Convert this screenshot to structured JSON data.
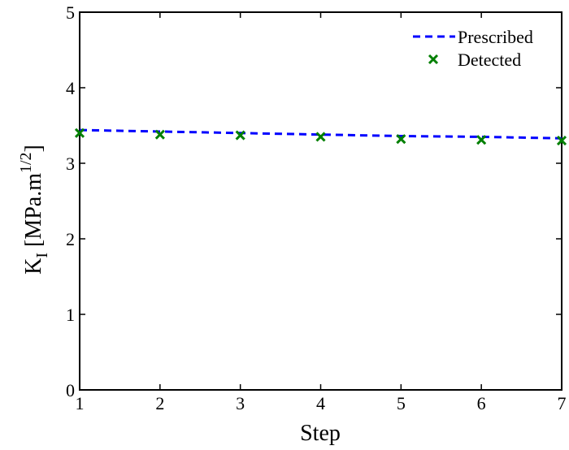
{
  "chart_data": {
    "type": "line",
    "xlabel": "Step",
    "ylabel": {
      "base": "K",
      "subscript": "I",
      "units_open": " [MPa.m",
      "units_exponent": "1/2",
      "units_close": "]"
    },
    "xlim": [
      1,
      7
    ],
    "ylim": [
      0,
      5
    ],
    "x_ticks": [
      "1",
      "2",
      "3",
      "4",
      "5",
      "6",
      "7"
    ],
    "y_ticks": [
      "0",
      "1",
      "2",
      "3",
      "4",
      "5"
    ],
    "grid": false,
    "legend_position": "top-right",
    "series": [
      {
        "name": "Prescribed",
        "style": "dashed-line",
        "color": "#0000ff",
        "x": [
          1,
          2,
          3,
          4,
          5,
          6,
          7
        ],
        "values": [
          3.44,
          3.42,
          3.4,
          3.38,
          3.36,
          3.35,
          3.33
        ]
      },
      {
        "name": "Detected",
        "style": "x-marker",
        "color": "#007f00",
        "x": [
          1,
          2,
          3,
          4,
          5,
          6,
          7
        ],
        "values": [
          3.4,
          3.38,
          3.37,
          3.35,
          3.32,
          3.31,
          3.3
        ]
      }
    ]
  }
}
